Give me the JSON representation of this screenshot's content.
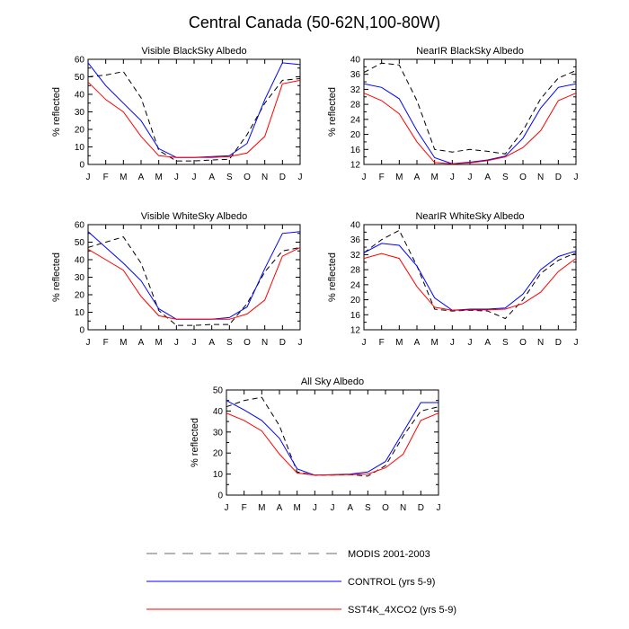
{
  "title": "Central Canada (50-62N,100-80W)",
  "legend": [
    {
      "name": "MODIS 2001-2003",
      "color": "#000000",
      "dash": "dashed"
    },
    {
      "name": "CONTROL (yrs 5-9)",
      "color": "#0000ff",
      "dash": "solid"
    },
    {
      "name": "SST4K_4XCO2 (yrs 5-9)",
      "color": "#ff0000",
      "dash": "solid"
    }
  ],
  "chart_data": [
    {
      "type": "line",
      "title": "Visible BlackSky Albedo",
      "ylabel": "% reflected",
      "categories": [
        "J",
        "F",
        "M",
        "A",
        "M",
        "J",
        "J",
        "A",
        "S",
        "O",
        "N",
        "D",
        "J"
      ],
      "ylim": [
        0,
        60
      ],
      "yticks": [
        0,
        10,
        20,
        30,
        40,
        50,
        60
      ],
      "series": [
        {
          "name": "MODIS 2001-2003",
          "values": [
            50,
            51,
            53,
            38,
            8,
            2,
            2,
            2.5,
            3,
            17,
            35,
            48,
            49
          ]
        },
        {
          "name": "CONTROL (yrs 5-9)",
          "values": [
            58,
            45,
            35,
            25,
            9,
            4,
            4,
            4.5,
            5,
            12,
            37,
            58,
            57
          ]
        },
        {
          "name": "SST4K_4XCO2 (yrs 5-9)",
          "values": [
            47,
            37,
            30,
            16,
            5,
            4,
            4,
            4,
            4.5,
            6.5,
            16,
            46,
            48
          ]
        }
      ]
    },
    {
      "type": "line",
      "title": "NearIR BlackSky Albedo",
      "ylabel": "% reflected",
      "categories": [
        "J",
        "F",
        "M",
        "A",
        "M",
        "J",
        "J",
        "A",
        "S",
        "O",
        "N",
        "D",
        "J"
      ],
      "ylim": [
        12,
        40
      ],
      "yticks": [
        12,
        16,
        20,
        24,
        28,
        32,
        36,
        40
      ],
      "series": [
        {
          "name": "MODIS 2001-2003",
          "values": [
            36.5,
            39,
            38.5,
            29,
            16,
            15.3,
            16,
            15.5,
            14.8,
            21,
            29.5,
            35,
            37
          ]
        },
        {
          "name": "CONTROL (yrs 5-9)",
          "values": [
            33.5,
            32.5,
            29.5,
            21,
            13.8,
            12.2,
            12.6,
            13.2,
            14.2,
            19,
            27,
            32.5,
            33.5
          ]
        },
        {
          "name": "SST4K_4XCO2 (yrs 5-9)",
          "values": [
            31,
            29,
            25.5,
            18,
            12.5,
            12.2,
            12.4,
            13,
            14,
            16.5,
            21,
            29,
            31
          ]
        }
      ]
    },
    {
      "type": "line",
      "title": "Visible WhiteSky Albedo",
      "ylabel": "% reflected",
      "categories": [
        "J",
        "F",
        "M",
        "A",
        "M",
        "J",
        "J",
        "A",
        "S",
        "O",
        "N",
        "D",
        "J"
      ],
      "ylim": [
        0,
        60
      ],
      "yticks": [
        0,
        10,
        20,
        30,
        40,
        50,
        60
      ],
      "series": [
        {
          "name": "MODIS 2001-2003",
          "values": [
            47,
            50,
            53,
            38,
            11,
            2.5,
            2.5,
            3,
            3,
            15,
            33,
            45,
            47
          ]
        },
        {
          "name": "CONTROL (yrs 5-9)",
          "values": [
            56,
            47,
            38,
            28,
            12,
            6,
            6,
            6,
            7,
            13,
            35,
            55,
            56
          ]
        },
        {
          "name": "SST4K_4XCO2 (yrs 5-9)",
          "values": [
            46,
            40,
            34,
            19,
            8,
            6,
            6,
            6,
            6,
            9,
            17,
            42,
            47
          ]
        }
      ]
    },
    {
      "type": "line",
      "title": "NearIR WhiteSky Albedo",
      "ylabel": "% reflected",
      "categories": [
        "J",
        "F",
        "M",
        "A",
        "M",
        "J",
        "J",
        "A",
        "S",
        "O",
        "N",
        "D",
        "J"
      ],
      "ylim": [
        12,
        40
      ],
      "yticks": [
        12,
        16,
        20,
        24,
        28,
        32,
        36,
        40
      ],
      "series": [
        {
          "name": "MODIS 2001-2003",
          "values": [
            32.5,
            36,
            38.5,
            29,
            17.5,
            17,
            17.2,
            17,
            15,
            20,
            27,
            30.5,
            32.5
          ]
        },
        {
          "name": "CONTROL (yrs 5-9)",
          "values": [
            32.5,
            35,
            34.5,
            29,
            20.5,
            17.2,
            17.5,
            17.5,
            17.8,
            21.5,
            28,
            31.5,
            33
          ]
        },
        {
          "name": "SST4K_4XCO2 (yrs 5-9)",
          "values": [
            31,
            32.3,
            31,
            23.5,
            18,
            17.2,
            17.3,
            17.3,
            17.5,
            19,
            22,
            27.5,
            31
          ]
        }
      ]
    },
    {
      "type": "line",
      "title": "All Sky Albedo",
      "ylabel": "% reflected",
      "categories": [
        "J",
        "F",
        "M",
        "A",
        "M",
        "J",
        "J",
        "A",
        "S",
        "O",
        "N",
        "D",
        "J"
      ],
      "ylim": [
        0,
        50
      ],
      "yticks": [
        0,
        10,
        20,
        30,
        40,
        50
      ],
      "series": [
        {
          "name": "MODIS 2001-2003",
          "values": [
            42,
            45,
            46.5,
            33,
            11,
            9.5,
            9.5,
            9.8,
            9,
            14,
            28,
            40,
            42
          ]
        },
        {
          "name": "CONTROL (yrs 5-9)",
          "values": [
            45,
            40.5,
            35.5,
            27,
            12.5,
            9.5,
            9.7,
            10,
            11,
            16,
            30,
            44,
            44
          ]
        },
        {
          "name": "SST4K_4XCO2 (yrs 5-9)",
          "values": [
            39,
            35.5,
            30.5,
            19.5,
            10.5,
            9.5,
            9.6,
            9.8,
            10,
            13,
            19.5,
            35.5,
            39
          ]
        }
      ]
    }
  ]
}
